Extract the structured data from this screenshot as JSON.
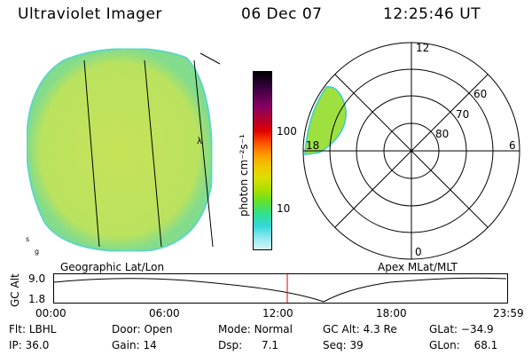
{
  "header": {
    "instrument": "Ultraviolet Imager",
    "date": "06 Dec 07",
    "time": "12:25:46 UT"
  },
  "geo_panel": {
    "label": "Geographic Lat/Lon",
    "marks": [
      "λ",
      "s",
      "g"
    ]
  },
  "colorbar": {
    "unit_label": "photon cm⁻²s⁻¹",
    "ticks": [
      "100",
      "10"
    ],
    "colors": [
      "#000000",
      "#2a0030",
      "#5a0050",
      "#8a0060",
      "#b00030",
      "#e00000",
      "#ff5000",
      "#ff9a00",
      "#f0c800",
      "#d8e000",
      "#a8e000",
      "#60e030",
      "#30e090",
      "#30d8d8",
      "#90e8f0",
      "#d8f4f8"
    ]
  },
  "polar_panel": {
    "label": "Apex MLat/MLT",
    "mlt_labels": [
      "12",
      "18",
      "6",
      "0"
    ],
    "lat_labels": [
      "60",
      "70",
      "80"
    ]
  },
  "altitude_strip": {
    "ylabel": "GC Alt",
    "ticks": [
      "9.0",
      "1.8"
    ],
    "time_ticks": [
      "00:00",
      "06:00",
      "12:00",
      "18:00",
      "23:59"
    ],
    "current_time_marker_color": "#e00000"
  },
  "info": {
    "filter_label": "Flt:",
    "filter": "LBHL",
    "door_label": "Door:",
    "door": "Open",
    "mode_label": "Mode:",
    "mode": "Normal",
    "gcalt_label": "GC Alt:",
    "gcalt": "4.3 Re",
    "glat_label": "GLat:",
    "glat": "−34.9",
    "ip_label": "IP:",
    "ip": "36.0",
    "gain_label": "Gain:",
    "gain": "14",
    "dsp_label": "Dsp:",
    "dsp": "7.1",
    "seq_label": "Seq:",
    "seq": "39",
    "glon_label": "GLon:",
    "glon": "68.1"
  },
  "colors": {
    "glow": "#b8e050",
    "rim": "#30d0d0",
    "line": "#000000"
  }
}
